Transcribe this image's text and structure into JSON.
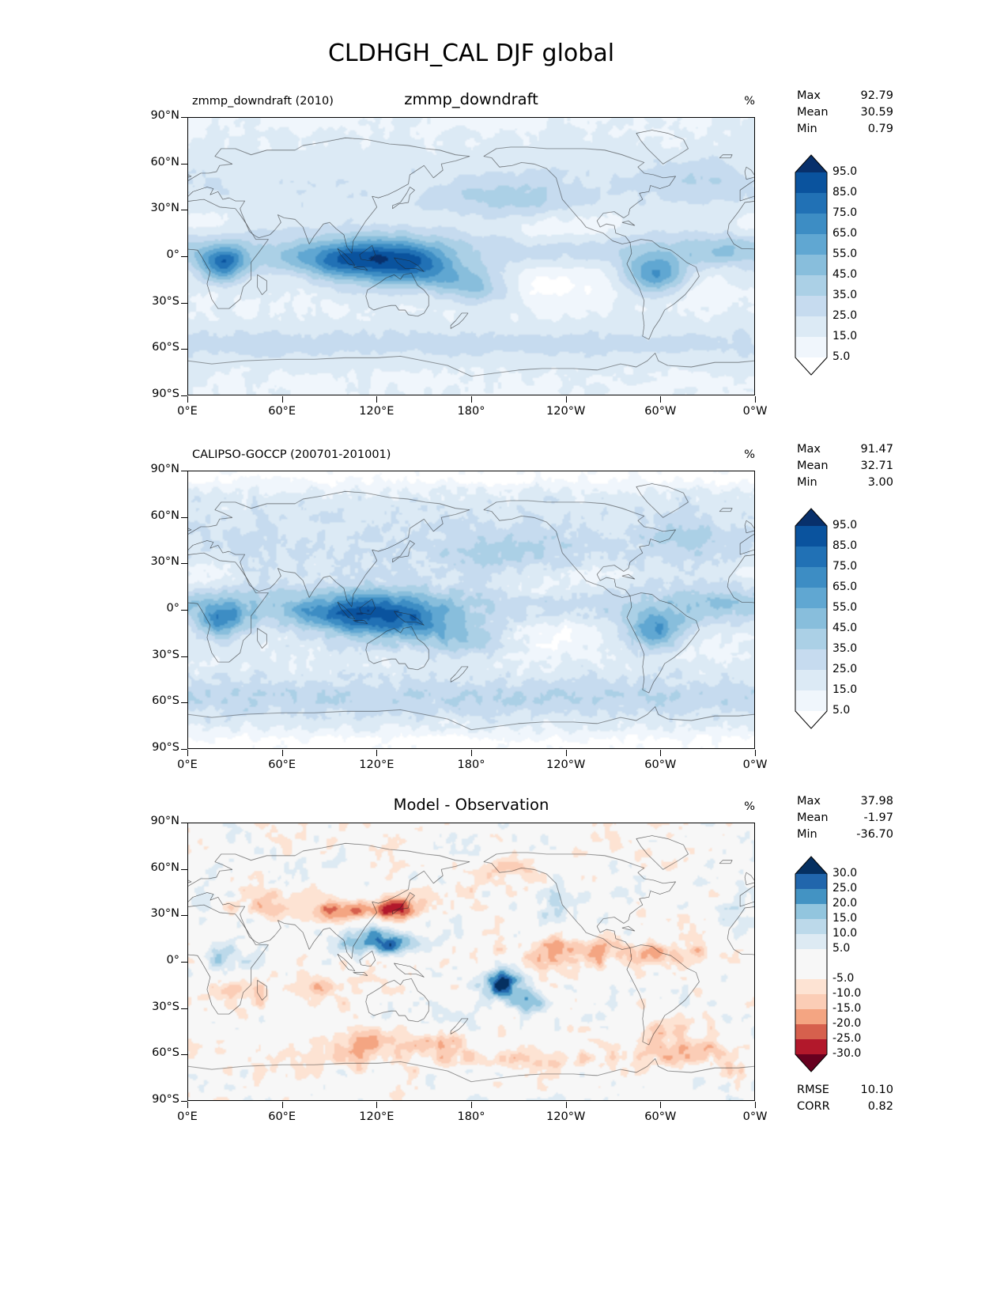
{
  "figure": {
    "title": "CLDHGH_CAL DJF global"
  },
  "axes": {
    "x_ticks": [
      "0°E",
      "60°E",
      "120°E",
      "180°",
      "120°W",
      "60°W",
      "0°W"
    ],
    "y_ticks": [
      "90°N",
      "60°N",
      "30°N",
      "0°",
      "30°S",
      "60°S",
      "90°S"
    ]
  },
  "panels": [
    {
      "left_title": "zmmp_downdraft (2010)",
      "center_title": "zmmp_downdraft",
      "units": "%",
      "stats": [
        {
          "label": "Max",
          "value": "92.79"
        },
        {
          "label": "Mean",
          "value": "30.59"
        },
        {
          "label": "Min",
          "value": "0.79"
        }
      ],
      "colorbar_labels": [
        "95.0",
        "85.0",
        "75.0",
        "65.0",
        "55.0",
        "45.0",
        "35.0",
        "25.0",
        "15.0",
        "5.0"
      ]
    },
    {
      "left_title": "CALIPSO-GOCCP (200701-201001)",
      "center_title": "",
      "units": "%",
      "stats": [
        {
          "label": "Max",
          "value": "91.47"
        },
        {
          "label": "Mean",
          "value": "32.71"
        },
        {
          "label": "Min",
          "value": "3.00"
        }
      ],
      "colorbar_labels": [
        "95.0",
        "85.0",
        "75.0",
        "65.0",
        "55.0",
        "45.0",
        "35.0",
        "25.0",
        "15.0",
        "5.0"
      ]
    },
    {
      "left_title": "",
      "center_title": "Model - Observation",
      "units": "%",
      "stats": [
        {
          "label": "Max",
          "value": "37.98"
        },
        {
          "label": "Mean",
          "value": "-1.97"
        },
        {
          "label": "Min",
          "value": "-36.70"
        }
      ],
      "colorbar_labels": [
        "30.0",
        "25.0",
        "20.0",
        "15.0",
        "10.0",
        "5.0",
        "-5.0",
        "-10.0",
        "-15.0",
        "-20.0",
        "-25.0",
        "-30.0"
      ],
      "extra_stats": [
        {
          "label": "RMSE",
          "value": "10.10"
        },
        {
          "label": "CORR",
          "value": "0.82"
        }
      ]
    }
  ],
  "chart_data": [
    {
      "type": "heatmap",
      "title": "zmmp_downdraft (2010)",
      "subtitle": "zmmp_downdraft",
      "variable": "CLDHGH_CAL",
      "season": "DJF",
      "region": "global",
      "units": "%",
      "projection": "equirectangular",
      "x": {
        "label": "longitude",
        "range": [
          0,
          360
        ],
        "tick_labels": [
          "0°E",
          "60°E",
          "120°E",
          "180°",
          "120°W",
          "60°W",
          "0°W"
        ]
      },
      "y": {
        "label": "latitude",
        "range": [
          -90,
          90
        ],
        "tick_labels": [
          "90°N",
          "60°N",
          "30°N",
          "0°",
          "30°S",
          "60°S",
          "90°S"
        ]
      },
      "colormap": "Blues",
      "contour_levels": [
        5,
        15,
        25,
        35,
        45,
        55,
        65,
        75,
        85,
        95
      ],
      "colorbar_extend": "both",
      "legend_position": "right",
      "stats": {
        "max": 92.79,
        "mean": 30.59,
        "min": 0.79
      }
    },
    {
      "type": "heatmap",
      "title": "CALIPSO-GOCCP (200701-201001)",
      "variable": "CLDHGH_CAL",
      "season": "DJF",
      "region": "global",
      "units": "%",
      "projection": "equirectangular",
      "x": {
        "label": "longitude",
        "range": [
          0,
          360
        ],
        "tick_labels": [
          "0°E",
          "60°E",
          "120°E",
          "180°",
          "120°W",
          "60°W",
          "0°W"
        ]
      },
      "y": {
        "label": "latitude",
        "range": [
          -90,
          90
        ],
        "tick_labels": [
          "90°N",
          "60°N",
          "30°N",
          "0°",
          "30°S",
          "60°S",
          "90°S"
        ]
      },
      "colormap": "Blues",
      "contour_levels": [
        5,
        15,
        25,
        35,
        45,
        55,
        65,
        75,
        85,
        95
      ],
      "colorbar_extend": "both",
      "legend_position": "right",
      "stats": {
        "max": 91.47,
        "mean": 32.71,
        "min": 3.0
      }
    },
    {
      "type": "heatmap",
      "title": "Model - Observation",
      "variable": "CLDHGH_CAL difference",
      "season": "DJF",
      "region": "global",
      "units": "%",
      "projection": "equirectangular",
      "x": {
        "label": "longitude",
        "range": [
          0,
          360
        ],
        "tick_labels": [
          "0°E",
          "60°E",
          "120°E",
          "180°",
          "120°W",
          "60°W",
          "0°W"
        ]
      },
      "y": {
        "label": "latitude",
        "range": [
          -90,
          90
        ],
        "tick_labels": [
          "90°N",
          "60°N",
          "30°N",
          "0°",
          "30°S",
          "60°S",
          "90°S"
        ]
      },
      "colormap": "RdBu",
      "contour_levels": [
        -30,
        -25,
        -20,
        -15,
        -10,
        -5,
        5,
        10,
        15,
        20,
        25,
        30
      ],
      "colorbar_extend": "both",
      "legend_position": "right",
      "stats": {
        "max": 37.98,
        "mean": -1.97,
        "min": -36.7,
        "rmse": 10.1,
        "corr": 0.82
      }
    }
  ]
}
